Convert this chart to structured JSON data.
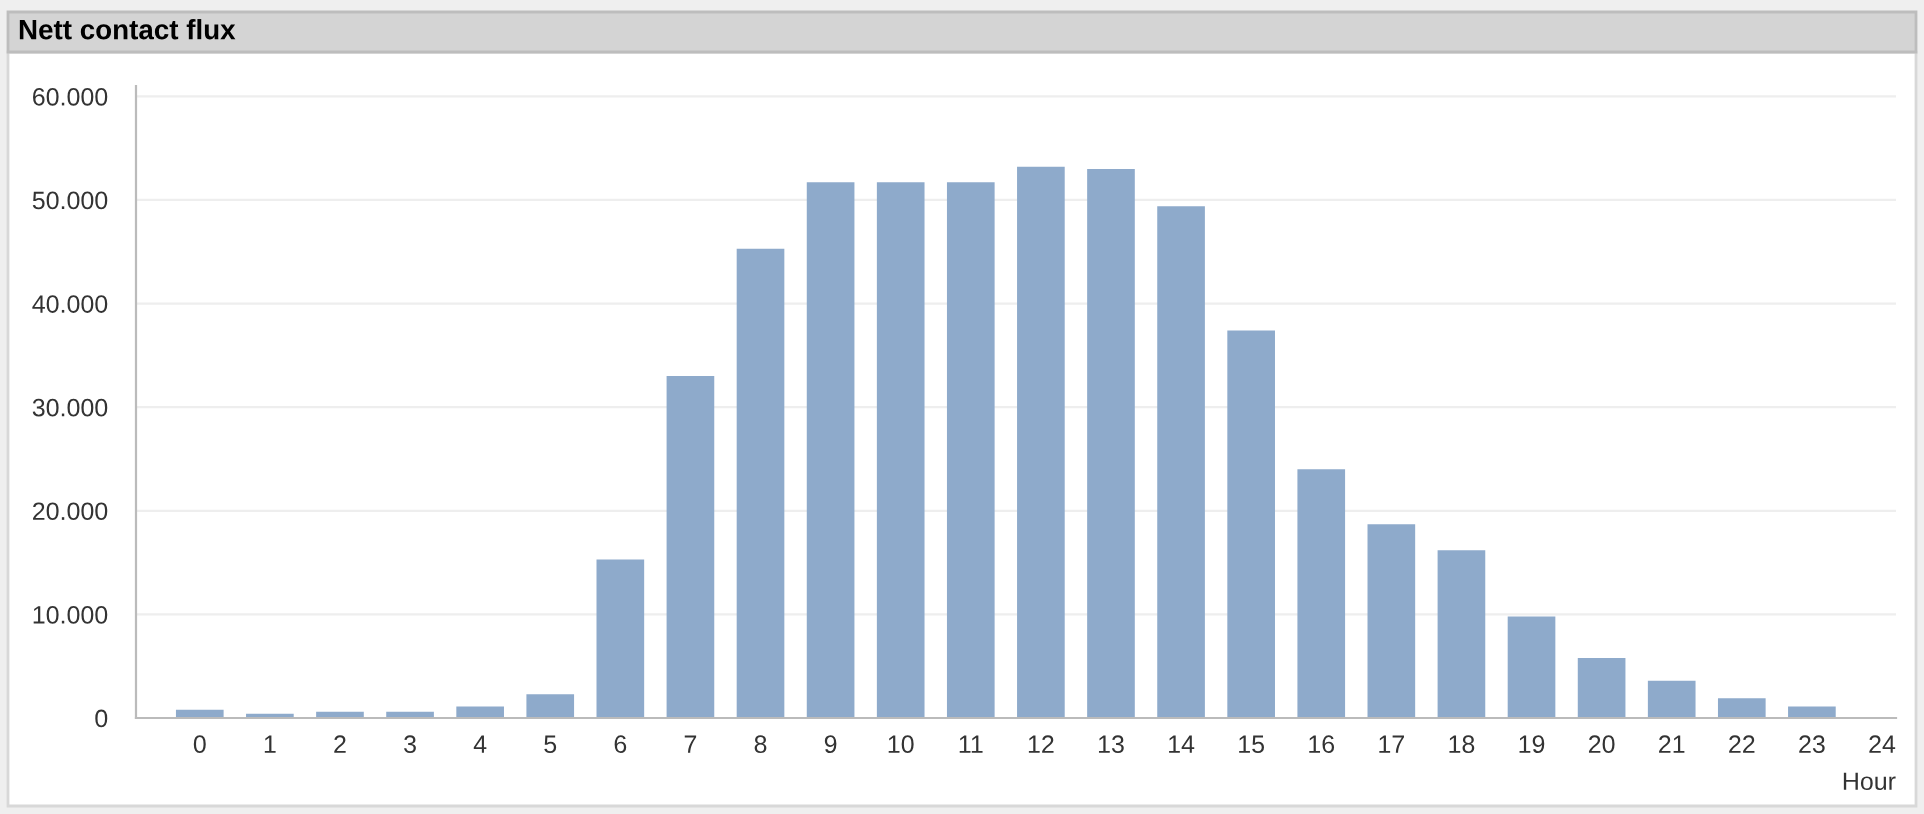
{
  "chart_data": {
    "type": "bar",
    "title": "Nett contact flux",
    "xlabel": "Hour",
    "categories": [
      "0",
      "1",
      "2",
      "3",
      "4",
      "5",
      "6",
      "7",
      "8",
      "9",
      "10",
      "11",
      "12",
      "13",
      "14",
      "15",
      "16",
      "17",
      "18",
      "19",
      "20",
      "21",
      "22",
      "23",
      "24"
    ],
    "values": [
      800,
      400,
      600,
      600,
      1100,
      2300,
      15300,
      33000,
      45300,
      51700,
      51700,
      51700,
      53200,
      53000,
      49400,
      37400,
      24000,
      18700,
      16200,
      9800,
      5800,
      3600,
      1900,
      1100,
      0
    ],
    "color": "#8eaacb",
    "ylim": [
      0,
      61000
    ],
    "yticks": [
      {
        "value": 0,
        "label": "0"
      },
      {
        "value": 10000,
        "label": "10.000"
      },
      {
        "value": 20000,
        "label": "20.000"
      },
      {
        "value": 30000,
        "label": "30.000"
      },
      {
        "value": 40000,
        "label": "40.000"
      },
      {
        "value": 50000,
        "label": "50.000"
      },
      {
        "value": 60000,
        "label": "60.000"
      }
    ],
    "grid": "y"
  }
}
